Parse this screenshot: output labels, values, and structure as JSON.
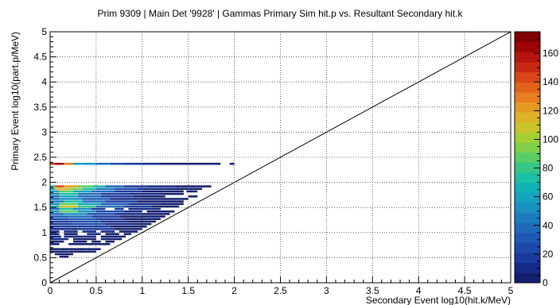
{
  "chart_data": {
    "type": "heatmap",
    "title": "Prim 9309 | Main Det '9928' | Gammas Primary Sim hit.p vs. Resultant Secondary hit.k",
    "xlabel": "Secondary Event log10(hit.k/MeV)",
    "ylabel": "Primary Event log10(part.p/MeV)",
    "xlim": [
      0,
      5
    ],
    "ylim": [
      0,
      5
    ],
    "x_ticks": [
      "0",
      "0.5",
      "1",
      "1.5",
      "2",
      "2.5",
      "3",
      "3.5",
      "4",
      "4.5",
      "5"
    ],
    "y_ticks": [
      "0",
      "0.5",
      "1",
      "1.5",
      "2",
      "2.5",
      "3",
      "3.5",
      "4",
      "4.5",
      "5"
    ],
    "grid": true,
    "diagonal_line": [
      [
        0,
        0
      ],
      [
        5,
        5
      ]
    ],
    "colorbar": {
      "range": [
        0,
        175
      ],
      "ticks": [
        "0",
        "20",
        "40",
        "60",
        "80",
        "100",
        "120",
        "140",
        "160"
      ],
      "colors": [
        "#141f6e",
        "#162a88",
        "#1a3a9c",
        "#1c4aab",
        "#1e5ab4",
        "#1f6aba",
        "#1d7cbe",
        "#1990c0",
        "#14a3bf",
        "#12b3b5",
        "#1cbfa2",
        "#36c786",
        "#58cd66",
        "#7fd048",
        "#a6cf33",
        "#c8c52a",
        "#dcb226",
        "#e49a22",
        "#e67e20",
        "#e2621c",
        "#d94418",
        "#c82914",
        "#b51410",
        "#9c0606",
        "#800000"
      ]
    },
    "rows": [
      {
        "y": 2.35,
        "segments": [
          [
            0.0,
            0.05,
            150
          ],
          [
            0.05,
            0.15,
            165
          ],
          [
            0.15,
            0.25,
            130
          ],
          [
            0.25,
            0.35,
            60
          ],
          [
            0.35,
            0.5,
            50
          ],
          [
            0.5,
            0.65,
            40
          ],
          [
            0.65,
            0.8,
            25
          ],
          [
            0.8,
            1.0,
            15
          ],
          [
            1.0,
            1.2,
            10
          ],
          [
            1.2,
            1.5,
            6
          ],
          [
            1.5,
            1.85,
            3
          ],
          [
            1.95,
            2.0,
            2
          ]
        ]
      },
      {
        "y": 1.9,
        "segments": [
          [
            0.0,
            0.05,
            70
          ],
          [
            0.05,
            0.15,
            140
          ],
          [
            0.15,
            0.3,
            120
          ],
          [
            0.3,
            0.45,
            90
          ],
          [
            0.45,
            0.6,
            70
          ],
          [
            0.6,
            0.8,
            40
          ],
          [
            0.8,
            1.05,
            20
          ],
          [
            1.05,
            1.35,
            8
          ],
          [
            1.35,
            1.75,
            4
          ]
        ]
      },
      {
        "y": 1.85,
        "segments": [
          [
            0.0,
            0.05,
            50
          ],
          [
            0.05,
            0.2,
            115
          ],
          [
            0.2,
            0.35,
            95
          ],
          [
            0.35,
            0.5,
            70
          ],
          [
            0.5,
            0.7,
            45
          ],
          [
            0.7,
            0.95,
            25
          ],
          [
            0.95,
            1.25,
            10
          ],
          [
            1.25,
            1.5,
            4
          ],
          [
            1.5,
            1.65,
            2
          ]
        ]
      },
      {
        "y": 1.8,
        "segments": [
          [
            0.0,
            0.1,
            60
          ],
          [
            0.1,
            0.25,
            90
          ],
          [
            0.25,
            0.45,
            60
          ],
          [
            0.45,
            0.7,
            35
          ],
          [
            0.7,
            1.0,
            15
          ],
          [
            1.0,
            1.45,
            6
          ],
          [
            1.48,
            1.6,
            3
          ]
        ]
      },
      {
        "y": 1.75,
        "segments": [
          [
            0.0,
            0.1,
            45
          ],
          [
            0.1,
            0.3,
            70
          ],
          [
            0.3,
            0.55,
            40
          ],
          [
            0.55,
            0.85,
            20
          ],
          [
            0.85,
            1.2,
            8
          ],
          [
            1.2,
            1.45,
            3
          ]
        ]
      },
      {
        "y": 1.7,
        "segments": [
          [
            0.0,
            0.1,
            40
          ],
          [
            0.1,
            0.3,
            60
          ],
          [
            0.3,
            0.55,
            35
          ],
          [
            0.55,
            0.9,
            15
          ],
          [
            0.9,
            1.25,
            5
          ],
          [
            1.5,
            1.6,
            2
          ]
        ]
      },
      {
        "y": 1.65,
        "segments": [
          [
            0.0,
            0.1,
            35
          ],
          [
            0.1,
            0.35,
            55
          ],
          [
            0.35,
            0.65,
            30
          ],
          [
            0.65,
            1.0,
            12
          ],
          [
            1.0,
            1.5,
            4
          ]
        ]
      },
      {
        "y": 1.6,
        "segments": [
          [
            0.0,
            0.15,
            45
          ],
          [
            0.15,
            0.35,
            70
          ],
          [
            0.35,
            0.6,
            40
          ],
          [
            0.6,
            0.95,
            18
          ],
          [
            0.95,
            1.45,
            6
          ]
        ]
      },
      {
        "y": 1.55,
        "segments": [
          [
            0.0,
            0.1,
            55
          ],
          [
            0.1,
            0.3,
            90
          ],
          [
            0.3,
            0.55,
            60
          ],
          [
            0.55,
            0.85,
            30
          ],
          [
            0.85,
            1.2,
            12
          ],
          [
            1.2,
            1.45,
            4
          ]
        ]
      },
      {
        "y": 1.5,
        "segments": [
          [
            0.0,
            0.1,
            65
          ],
          [
            0.1,
            0.3,
            110
          ],
          [
            0.3,
            0.5,
            80
          ],
          [
            0.5,
            0.8,
            40
          ],
          [
            0.8,
            1.1,
            15
          ],
          [
            1.1,
            1.4,
            5
          ]
        ]
      },
      {
        "y": 1.45,
        "segments": [
          [
            0.0,
            0.1,
            40
          ],
          [
            0.1,
            0.25,
            75
          ],
          [
            0.25,
            0.45,
            50
          ],
          [
            0.45,
            0.6,
            20
          ],
          [
            0.7,
            0.8,
            15
          ],
          [
            0.85,
            1.2,
            8
          ]
        ]
      },
      {
        "y": 1.4,
        "segments": [
          [
            0.0,
            0.1,
            55
          ],
          [
            0.1,
            0.3,
            85
          ],
          [
            0.3,
            0.5,
            55
          ],
          [
            0.5,
            0.8,
            25
          ],
          [
            0.8,
            1.0,
            10
          ],
          [
            1.05,
            1.35,
            4
          ]
        ]
      },
      {
        "y": 1.35,
        "segments": [
          [
            0.0,
            0.15,
            35
          ],
          [
            0.15,
            0.4,
            50
          ],
          [
            0.4,
            0.7,
            25
          ],
          [
            0.7,
            1.0,
            8
          ],
          [
            1.0,
            1.3,
            3
          ]
        ]
      },
      {
        "y": 1.3,
        "segments": [
          [
            0.0,
            0.2,
            30
          ],
          [
            0.2,
            0.45,
            40
          ],
          [
            0.45,
            0.75,
            20
          ],
          [
            0.75,
            1.25,
            6
          ]
        ]
      },
      {
        "y": 1.25,
        "segments": [
          [
            0.0,
            0.2,
            25
          ],
          [
            0.2,
            0.5,
            30
          ],
          [
            0.5,
            0.8,
            15
          ],
          [
            0.8,
            1.2,
            5
          ]
        ]
      },
      {
        "y": 1.2,
        "segments": [
          [
            0.0,
            0.25,
            20
          ],
          [
            0.25,
            0.55,
            25
          ],
          [
            0.55,
            0.85,
            12
          ],
          [
            0.85,
            1.15,
            4
          ]
        ]
      },
      {
        "y": 1.15,
        "segments": [
          [
            0.0,
            0.25,
            18
          ],
          [
            0.25,
            0.6,
            22
          ],
          [
            0.6,
            0.9,
            10
          ],
          [
            0.9,
            1.1,
            3
          ]
        ]
      },
      {
        "y": 1.1,
        "segments": [
          [
            0.0,
            0.3,
            15
          ],
          [
            0.3,
            0.65,
            18
          ],
          [
            0.65,
            1.05,
            6
          ]
        ]
      },
      {
        "y": 1.05,
        "segments": [
          [
            0.0,
            0.3,
            12
          ],
          [
            0.3,
            0.7,
            14
          ],
          [
            0.7,
            1.0,
            5
          ]
        ]
      },
      {
        "y": 1.0,
        "segments": [
          [
            0.0,
            0.1,
            10
          ],
          [
            0.15,
            0.3,
            8
          ],
          [
            0.35,
            0.5,
            10
          ],
          [
            0.55,
            0.7,
            9
          ],
          [
            0.75,
            0.95,
            4
          ]
        ]
      },
      {
        "y": 0.95,
        "segments": [
          [
            0.0,
            0.1,
            8
          ],
          [
            0.15,
            0.3,
            6
          ],
          [
            0.4,
            0.55,
            8
          ],
          [
            0.6,
            0.75,
            5
          ],
          [
            0.8,
            0.88,
            3
          ]
        ]
      },
      {
        "y": 0.9,
        "segments": [
          [
            0.0,
            0.12,
            8
          ],
          [
            0.15,
            0.5,
            7
          ],
          [
            0.55,
            0.82,
            4
          ]
        ]
      },
      {
        "y": 0.85,
        "segments": [
          [
            0.0,
            0.2,
            7
          ],
          [
            0.25,
            0.5,
            6
          ],
          [
            0.55,
            0.78,
            3
          ]
        ]
      },
      {
        "y": 0.8,
        "segments": [
          [
            0.0,
            0.15,
            6
          ],
          [
            0.25,
            0.4,
            5
          ],
          [
            0.45,
            0.55,
            3
          ],
          [
            0.6,
            0.7,
            3
          ]
        ]
      },
      {
        "y": 0.75,
        "segments": [
          [
            0.0,
            0.1,
            5
          ],
          [
            0.2,
            0.65,
            4
          ]
        ]
      },
      {
        "y": 0.65,
        "segments": [
          [
            0.0,
            0.1,
            6
          ],
          [
            0.1,
            0.4,
            5
          ],
          [
            0.4,
            0.55,
            3
          ]
        ]
      },
      {
        "y": 0.6,
        "segments": [
          [
            0.0,
            0.2,
            5
          ],
          [
            0.2,
            0.5,
            4
          ]
        ]
      },
      {
        "y": 0.55,
        "segments": [
          [
            0.05,
            0.25,
            4
          ]
        ]
      },
      {
        "y": 0.5,
        "segments": [
          [
            0.1,
            0.2,
            3
          ]
        ]
      }
    ]
  }
}
